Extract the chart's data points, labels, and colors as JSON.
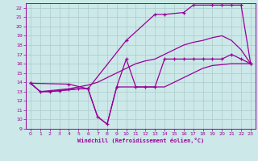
{
  "xlabel": "Windchill (Refroidissement éolien,°C)",
  "bg_color": "#cce8e8",
  "grid_color": "#aacccc",
  "line_color": "#990099",
  "xlim": [
    -0.5,
    23.5
  ],
  "ylim": [
    9,
    22.5
  ],
  "xticks": [
    0,
    1,
    2,
    3,
    4,
    5,
    6,
    7,
    8,
    9,
    10,
    11,
    12,
    13,
    14,
    15,
    16,
    17,
    18,
    19,
    20,
    21,
    22,
    23
  ],
  "yticks": [
    9,
    10,
    11,
    12,
    13,
    14,
    15,
    16,
    17,
    18,
    19,
    20,
    21,
    22
  ],
  "line_smooth_x": [
    0,
    1,
    2,
    3,
    4,
    5,
    6,
    7,
    8,
    9,
    10,
    11,
    12,
    13,
    14,
    15,
    16,
    17,
    18,
    19,
    20,
    21,
    22,
    23
  ],
  "line_smooth_y": [
    13.9,
    13.0,
    13.0,
    13.1,
    13.2,
    13.3,
    13.3,
    10.3,
    9.5,
    13.5,
    13.5,
    13.5,
    13.5,
    13.5,
    13.5,
    14.0,
    14.5,
    15.0,
    15.5,
    15.8,
    15.9,
    16.0,
    16.0,
    16.0
  ],
  "line_upper_x": [
    0,
    4,
    6,
    10,
    13,
    14,
    16,
    17,
    19,
    20,
    21,
    22,
    23
  ],
  "line_upper_y": [
    13.9,
    13.8,
    13.3,
    18.5,
    21.3,
    21.3,
    21.5,
    22.3,
    22.3,
    22.3,
    22.3,
    22.3,
    16.0
  ],
  "line_mid_x": [
    0,
    1,
    2,
    3,
    4,
    5,
    6,
    7,
    8,
    9,
    10,
    11,
    12,
    13,
    14,
    15,
    16,
    17,
    18,
    19,
    20,
    21,
    22,
    23
  ],
  "line_mid_y": [
    13.9,
    13.0,
    13.1,
    13.2,
    13.3,
    13.5,
    13.7,
    14.0,
    14.5,
    15.0,
    15.5,
    16.0,
    16.3,
    16.5,
    17.0,
    17.5,
    18.0,
    18.3,
    18.5,
    18.8,
    19.0,
    18.5,
    17.5,
    16.0
  ],
  "line_lower_x": [
    0,
    1,
    2,
    3,
    4,
    5,
    6,
    7,
    8,
    9,
    10,
    11,
    12,
    13,
    14,
    15,
    16,
    17,
    18,
    19,
    20,
    21,
    22,
    23
  ],
  "line_lower_y": [
    13.9,
    13.0,
    13.0,
    13.1,
    13.2,
    13.3,
    13.3,
    10.3,
    9.5,
    13.5,
    16.5,
    13.5,
    13.5,
    13.5,
    16.5,
    16.5,
    16.5,
    16.5,
    16.5,
    16.5,
    16.5,
    17.0,
    16.5,
    16.0
  ]
}
